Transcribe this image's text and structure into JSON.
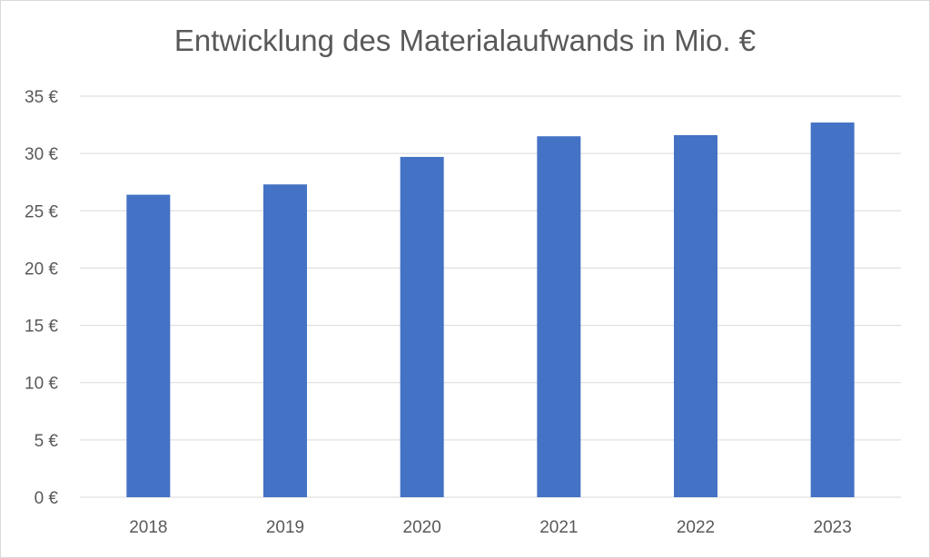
{
  "chart_data": {
    "type": "bar",
    "title": "Entwicklung des Materialaufwands in Mio. €",
    "xlabel": "",
    "ylabel": "",
    "categories": [
      "2018",
      "2019",
      "2020",
      "2021",
      "2022",
      "2023"
    ],
    "values": [
      26.4,
      27.3,
      29.7,
      31.5,
      31.6,
      32.7
    ],
    "ylim": [
      0,
      35
    ],
    "y_ticks": [
      0,
      5,
      10,
      15,
      20,
      25,
      30,
      35
    ],
    "y_tick_labels": [
      "0 €",
      "5 €",
      "10 €",
      "15 €",
      "20 €",
      "25 €",
      "30 €",
      "35 €"
    ],
    "grid": true,
    "legend": "none",
    "colors": {
      "bar": "#4472C4",
      "gridline": "#d9d9d9",
      "text": "#595959"
    }
  }
}
